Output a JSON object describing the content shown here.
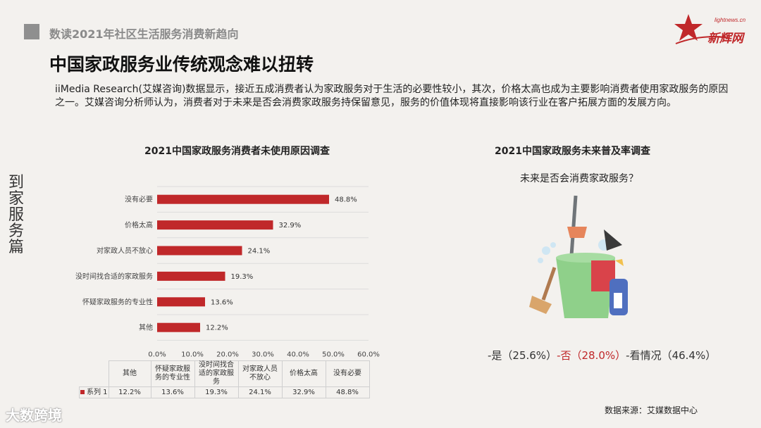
{
  "header": {
    "subtitle": "数读2021年社区生活服务消费新趋向",
    "title": "中国家政服务业传统观念难以扭转"
  },
  "logo": {
    "url": "lightnews.cn",
    "name": "新辉网"
  },
  "intro": "iiMedia Research(艾媒咨询)数据显示，接近五成消费者认为家政服务对于生活的必要性较小，其次，价格太高也成为主要影响消费者使用家政服务的原因之一。艾媒咨询分析师认为，消费者对于未来是否会消费家政服务持保留意见，服务的价值体现将直接影响该行业在客户拓展方面的发展方向。",
  "side_label": "到家服务篇",
  "chart_data": [
    {
      "type": "bar",
      "orientation": "horizontal",
      "title": "2021中国家政服务消费者未使用原因调查",
      "categories": [
        "没有必要",
        "价格太高",
        "对家政人员不放心",
        "没时间找合适的家政服务",
        "怀疑家政服务的专业性",
        "其他"
      ],
      "series": [
        {
          "name": "系列 1",
          "values": [
            48.8,
            32.9,
            24.1,
            19.3,
            13.6,
            12.2
          ]
        }
      ],
      "value_labels": [
        "48.8%",
        "32.9%",
        "24.1%",
        "19.3%",
        "13.6%",
        "12.2%"
      ],
      "x_ticks": [
        "0.0%",
        "10.0%",
        "20.0%",
        "30.0%",
        "40.0%",
        "50.0%",
        "60.0%"
      ],
      "xlim": [
        0,
        60
      ],
      "color": "#c0282a",
      "grid": true,
      "data_table": {
        "headers": [
          "其他",
          "怀疑家政服务的专业性",
          "没时间找合适的家政服务",
          "对家政人员不放心",
          "价格太高",
          "没有必要"
        ],
        "series_label": "系列 1",
        "values": [
          "12.2%",
          "13.6%",
          "19.3%",
          "24.1%",
          "32.9%",
          "48.8%"
        ]
      }
    },
    {
      "type": "table",
      "title": "2021中国家政服务未来普及率调查",
      "question": "未来是否会消费家政服务？",
      "categories": [
        "是",
        "否",
        "看情况"
      ],
      "values": [
        25.6,
        28.0,
        46.4
      ],
      "labels": [
        "-是（25.6%）",
        "-否（28.0%）",
        "-看情况（46.4%）"
      ]
    }
  ],
  "source": "数据来源：艾媒数据中心",
  "footer_logo": "大数跨境",
  "colors": {
    "accent": "#c0282a",
    "bucket": "#8fd08a",
    "grid": "#dcdcdc"
  }
}
